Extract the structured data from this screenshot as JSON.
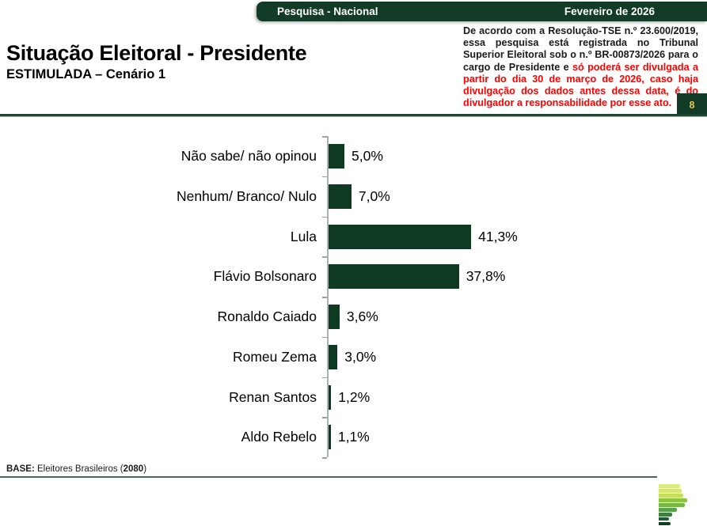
{
  "header": {
    "left_label": "Pesquisa - Nacional",
    "right_label": "Fevereiro de 2026"
  },
  "title": "Situação Eleitoral - Presidente",
  "subtitle": "ESTIMULADA – Cenário 1",
  "disclaimer": {
    "black_part": "De acordo com a Resolução-TSE n.º 23.600/2019, essa pesquisa está registrada no Tribunal Superior Eleitoral sob o n.º BR-00873/2026 para o cargo de Presidente e ",
    "red_part": "só poderá ser divulgada a partir do dia 30 de março de 2026, caso haja divulgação dos dados antes dessa data, é do divulgador a responsabilidade por esse ato."
  },
  "page_number": "8",
  "chart_data": {
    "type": "bar",
    "orientation": "horizontal",
    "title": "Situação Eleitoral - Presidente — ESTIMULADA – Cenário 1",
    "categories": [
      "Não sabe/ não opinou",
      "Nenhum/ Branco/ Nulo",
      "Lula",
      "Flávio Bolsonaro",
      "Ronaldo Caiado",
      "Romeu Zema",
      "Renan Santos",
      "Aldo Rebelo"
    ],
    "values": [
      5.0,
      7.0,
      41.3,
      37.8,
      3.6,
      3.0,
      1.2,
      1.1
    ],
    "value_labels": [
      "5,0%",
      "7,0%",
      "41,3%",
      "37,8%",
      "3,6%",
      "3,0%",
      "1,2%",
      "1,1%"
    ],
    "xlim": [
      0,
      45
    ],
    "grid": false,
    "legend": false,
    "bar_color": "#0e3a22"
  },
  "footer": {
    "base_prefix": "BASE:",
    "base_mid": " Eleitores Brasileiros (",
    "base_count": "2080",
    "base_suffix": ")"
  },
  "colors": {
    "brand_dark_green": "#123c27",
    "bar_green": "#0e3a22",
    "disclaimer_red": "#ff0000",
    "page_number_gold": "#e6c54c"
  },
  "logo": {
    "name": "green-stripes-brazil-logo",
    "stripes": [
      {
        "w": 27,
        "c": "#dcea84"
      },
      {
        "w": 29,
        "c": "#d5e573"
      },
      {
        "w": 31,
        "c": "#c3de5a"
      },
      {
        "w": 36,
        "c": "#8cc63f"
      },
      {
        "w": 33,
        "c": "#72b843"
      },
      {
        "w": 23,
        "c": "#5ba04b"
      },
      {
        "w": 17,
        "c": "#3d7e3e"
      },
      {
        "w": 13,
        "c": "#225a30"
      },
      {
        "w": 15,
        "c": "#0f3e22"
      }
    ]
  }
}
